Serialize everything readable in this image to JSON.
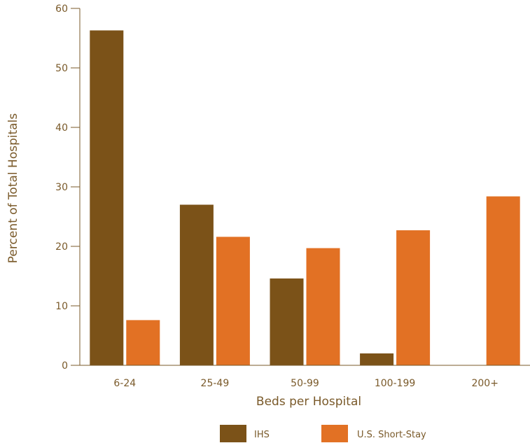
{
  "chart_data": {
    "type": "bar",
    "title": "",
    "xlabel": "Beds per Hospital",
    "ylabel": "Percent of Total Hospitals",
    "categories": [
      "6-24",
      "25-49",
      "50-99",
      "100-199",
      "200+"
    ],
    "series": [
      {
        "name": "IHS",
        "color": "#7b5218",
        "values": [
          56.3,
          27.0,
          14.6,
          2.0,
          0
        ]
      },
      {
        "name": "U.S. Short-Stay",
        "color": "#e27124",
        "values": [
          7.6,
          21.6,
          19.7,
          22.7,
          28.4
        ]
      }
    ],
    "yticks": [
      0,
      10,
      20,
      30,
      40,
      50,
      60
    ],
    "ylim": [
      0,
      60
    ],
    "grid": false,
    "legend": "bottom",
    "axis_color": "#7a5a2a"
  }
}
